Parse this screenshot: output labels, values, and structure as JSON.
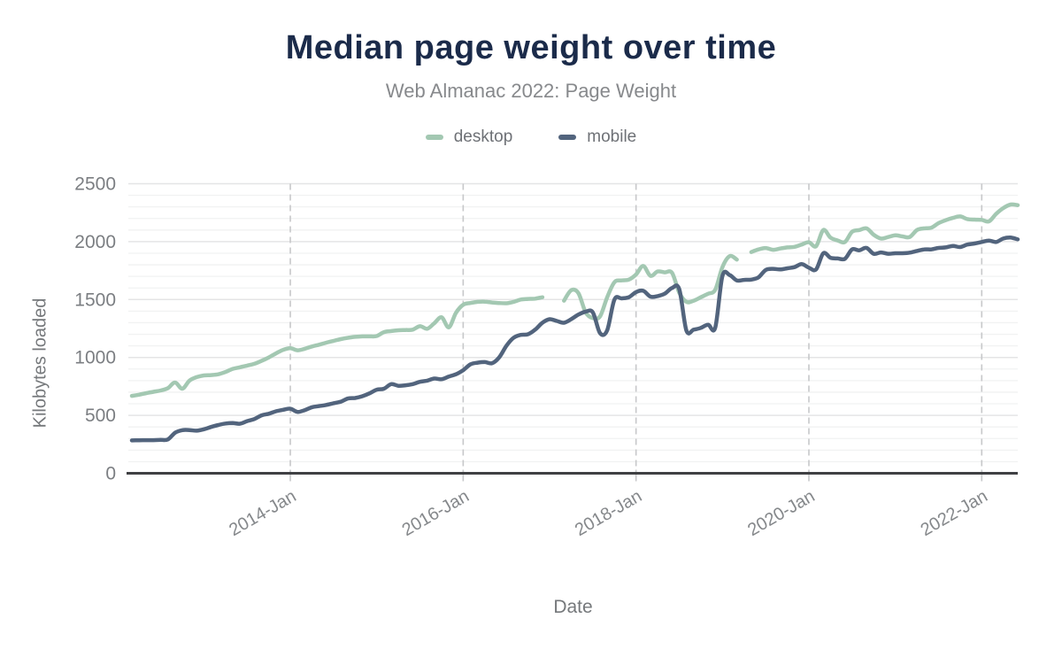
{
  "header": {
    "title": "Median page weight over time",
    "subtitle": "Web Almanac 2022: Page Weight"
  },
  "legend": {
    "items": [
      {
        "label": "desktop",
        "color": "#a3c8b2"
      },
      {
        "label": "mobile",
        "color": "#52647d"
      }
    ]
  },
  "axes": {
    "y_title": "Kilobytes loaded",
    "x_title": "Date"
  },
  "colors": {
    "title": "#1b2b4a",
    "subtitle": "#87898c",
    "legend_text": "#6e7176",
    "tick_text": "#7b7e82",
    "x_tick_text": "#85888b",
    "axis_line": "#3f4043",
    "dashed_grid": "#c7c8ca",
    "major_grid": "#e4e5e6",
    "minor_grid": "#f1f2f2",
    "desktop": "#a3c8b2",
    "mobile": "#52647d"
  },
  "chart_data": {
    "type": "line",
    "title": "Median page weight over time",
    "subtitle": "Web Almanac 2022: Page Weight",
    "xlabel": "Date",
    "ylabel": "Kilobytes loaded",
    "ylim": [
      0,
      2500
    ],
    "y_ticks": [
      0,
      500,
      1000,
      1500,
      2000,
      2500
    ],
    "y_minor_step": 100,
    "legend_position": "top",
    "grid": {
      "y_major": true,
      "y_minor": true,
      "x_year_dashed": true
    },
    "x_ticks": [
      {
        "label": "2014-Jan",
        "month": "2014-01"
      },
      {
        "label": "2016-Jan",
        "month": "2016-01"
      },
      {
        "label": "2018-Jan",
        "month": "2018-01"
      },
      {
        "label": "2020-Jan",
        "month": "2020-01"
      },
      {
        "label": "2022-Jan",
        "month": "2022-01"
      }
    ],
    "x": [
      "2012-03",
      "2012-04",
      "2012-05",
      "2012-06",
      "2012-07",
      "2012-08",
      "2012-09",
      "2012-10",
      "2012-11",
      "2012-12",
      "2013-01",
      "2013-02",
      "2013-03",
      "2013-04",
      "2013-05",
      "2013-06",
      "2013-07",
      "2013-08",
      "2013-09",
      "2013-10",
      "2013-11",
      "2013-12",
      "2014-01",
      "2014-02",
      "2014-03",
      "2014-04",
      "2014-05",
      "2014-06",
      "2014-07",
      "2014-08",
      "2014-09",
      "2014-10",
      "2014-11",
      "2014-12",
      "2015-01",
      "2015-02",
      "2015-03",
      "2015-04",
      "2015-05",
      "2015-06",
      "2015-07",
      "2015-08",
      "2015-09",
      "2015-10",
      "2015-11",
      "2015-12",
      "2016-01",
      "2016-02",
      "2016-03",
      "2016-04",
      "2016-05",
      "2016-06",
      "2016-07",
      "2016-08",
      "2016-09",
      "2016-10",
      "2016-11",
      "2016-12",
      "2017-01",
      "2017-02",
      "2017-03",
      "2017-04",
      "2017-05",
      "2017-06",
      "2017-07",
      "2017-08",
      "2017-09",
      "2017-10",
      "2017-11",
      "2017-12",
      "2018-01",
      "2018-02",
      "2018-03",
      "2018-04",
      "2018-05",
      "2018-06",
      "2018-07",
      "2018-08",
      "2018-09",
      "2018-10",
      "2018-11",
      "2018-12",
      "2019-01",
      "2019-02",
      "2019-03",
      "2019-04",
      "2019-05",
      "2019-06",
      "2019-07",
      "2019-08",
      "2019-09",
      "2019-10",
      "2019-11",
      "2019-12",
      "2020-01",
      "2020-02",
      "2020-03",
      "2020-04",
      "2020-05",
      "2020-06",
      "2020-07",
      "2020-08",
      "2020-09",
      "2020-10",
      "2020-11",
      "2020-12",
      "2021-01",
      "2021-02",
      "2021-03",
      "2021-04",
      "2021-05",
      "2021-06",
      "2021-07",
      "2021-08",
      "2021-09",
      "2021-10",
      "2021-11",
      "2021-12",
      "2022-01",
      "2022-02",
      "2022-03",
      "2022-04",
      "2022-05",
      "2022-06"
    ],
    "series": [
      {
        "name": "desktop",
        "color": "#a3c8b2",
        "values": [
          668,
          678,
          692,
          703,
          715,
          735,
          784,
          730,
          800,
          830,
          845,
          848,
          855,
          875,
          901,
          915,
          930,
          945,
          970,
          1000,
          1035,
          1066,
          1080,
          1062,
          1075,
          1095,
          1110,
          1128,
          1143,
          1158,
          1170,
          1178,
          1182,
          1182,
          1185,
          1219,
          1228,
          1235,
          1237,
          1240,
          1270,
          1248,
          1296,
          1347,
          1260,
          1385,
          1455,
          1470,
          1480,
          1482,
          1475,
          1470,
          1468,
          1480,
          1500,
          1505,
          1508,
          1520,
          null,
          null,
          1490,
          1580,
          1555,
          1390,
          1340,
          1355,
          1520,
          1650,
          1665,
          1672,
          1716,
          1790,
          1705,
          1742,
          1735,
          1730,
          1560,
          1480,
          1490,
          1520,
          1550,
          1585,
          1780,
          1875,
          1845,
          null,
          1910,
          1933,
          1945,
          1930,
          1940,
          1950,
          1955,
          1975,
          1995,
          1960,
          2100,
          2035,
          2010,
          1997,
          2085,
          2100,
          2115,
          2060,
          2027,
          2040,
          2055,
          2045,
          2040,
          2100,
          2115,
          2120,
          2160,
          2185,
          2205,
          2218,
          2195,
          2190,
          2188,
          2175,
          2240,
          2290,
          2320,
          2315
        ]
      },
      {
        "name": "mobile",
        "color": "#52647d",
        "values": [
          284,
          285,
          286,
          286,
          288,
          292,
          350,
          372,
          373,
          368,
          380,
          400,
          417,
          430,
          434,
          428,
          450,
          468,
          500,
          514,
          535,
          548,
          557,
          530,
          545,
          570,
          580,
          590,
          605,
          618,
          645,
          650,
          665,
          690,
          722,
          730,
          770,
          755,
          760,
          770,
          790,
          800,
          818,
          812,
          835,
          855,
          890,
          940,
          955,
          960,
          950,
          1000,
          1100,
          1170,
          1195,
          1200,
          1240,
          1300,
          1330,
          1315,
          1300,
          1330,
          1370,
          1395,
          1390,
          1210,
          1235,
          1500,
          1510,
          1520,
          1564,
          1576,
          1525,
          1530,
          1551,
          1600,
          1590,
          1232,
          1240,
          1255,
          1283,
          1258,
          1703,
          1711,
          1665,
          1670,
          1672,
          1691,
          1755,
          1765,
          1760,
          1770,
          1780,
          1806,
          1775,
          1760,
          1900,
          1861,
          1855,
          1852,
          1933,
          1925,
          1946,
          1895,
          1907,
          1895,
          1900,
          1900,
          1905,
          1920,
          1933,
          1933,
          1946,
          1950,
          1963,
          1953,
          1975,
          1984,
          1997,
          2009,
          1997,
          2027,
          2035,
          2020
        ]
      }
    ]
  }
}
